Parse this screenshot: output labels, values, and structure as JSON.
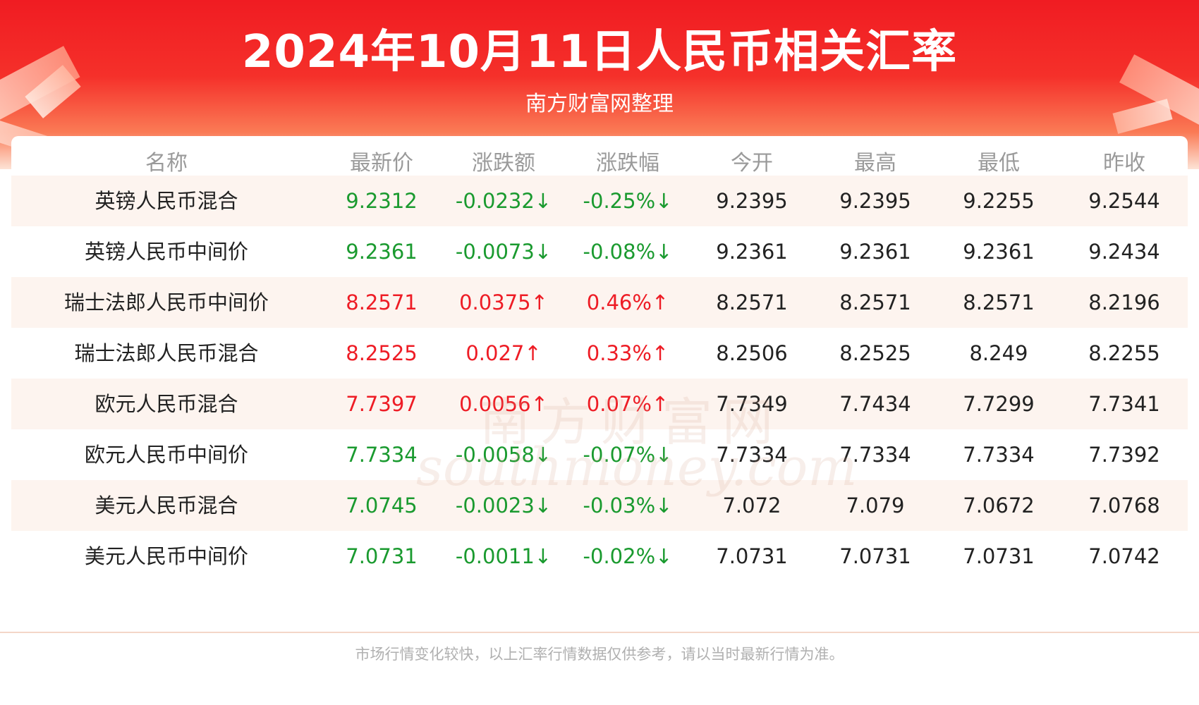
{
  "header": {
    "title": "2024年10月11日人民币相关汇率",
    "subtitle": "南方财富网整理"
  },
  "table": {
    "columns": [
      "名称",
      "最新价",
      "涨跌额",
      "涨跌幅",
      "今开",
      "最高",
      "最低",
      "昨收"
    ],
    "rows": [
      {
        "name": "英镑人民币混合",
        "latest": "9.2312",
        "change": "-0.0232↓",
        "pct": "-0.25%↓",
        "open": "9.2395",
        "high": "9.2395",
        "low": "9.2255",
        "prev": "9.2544",
        "trend": "down"
      },
      {
        "name": "英镑人民币中间价",
        "latest": "9.2361",
        "change": "-0.0073↓",
        "pct": "-0.08%↓",
        "open": "9.2361",
        "high": "9.2361",
        "low": "9.2361",
        "prev": "9.2434",
        "trend": "down"
      },
      {
        "name": "瑞士法郎人民币中间价",
        "latest": "8.2571",
        "change": "0.0375↑",
        "pct": "0.46%↑",
        "open": "8.2571",
        "high": "8.2571",
        "low": "8.2571",
        "prev": "8.2196",
        "trend": "up"
      },
      {
        "name": "瑞士法郎人民币混合",
        "latest": "8.2525",
        "change": "0.027↑",
        "pct": "0.33%↑",
        "open": "8.2506",
        "high": "8.2525",
        "low": "8.249",
        "prev": "8.2255",
        "trend": "up"
      },
      {
        "name": "欧元人民币混合",
        "latest": "7.7397",
        "change": "0.0056↑",
        "pct": "0.07%↑",
        "open": "7.7349",
        "high": "7.7434",
        "low": "7.7299",
        "prev": "7.7341",
        "trend": "up"
      },
      {
        "name": "欧元人民币中间价",
        "latest": "7.7334",
        "change": "-0.0058↓",
        "pct": "-0.07%↓",
        "open": "7.7334",
        "high": "7.7334",
        "low": "7.7334",
        "prev": "7.7392",
        "trend": "down"
      },
      {
        "name": "美元人民币混合",
        "latest": "7.0745",
        "change": "-0.0023↓",
        "pct": "-0.03%↓",
        "open": "7.072",
        "high": "7.079",
        "low": "7.0672",
        "prev": "7.0768",
        "trend": "down"
      },
      {
        "name": "美元人民币中间价",
        "latest": "7.0731",
        "change": "-0.0011↓",
        "pct": "-0.02%↓",
        "open": "7.0731",
        "high": "7.0731",
        "low": "7.0731",
        "prev": "7.0742",
        "trend": "down"
      }
    ]
  },
  "watermark": {
    "cn": "南方财富网",
    "en": "southmoney.com"
  },
  "footer": {
    "note": "市场行情变化较快，以上汇率行情数据仅供参考，请以当时最新行情为准。"
  },
  "colors": {
    "up": "#ee1c25",
    "down": "#1a9a2f",
    "header_red": "#f01c22"
  }
}
